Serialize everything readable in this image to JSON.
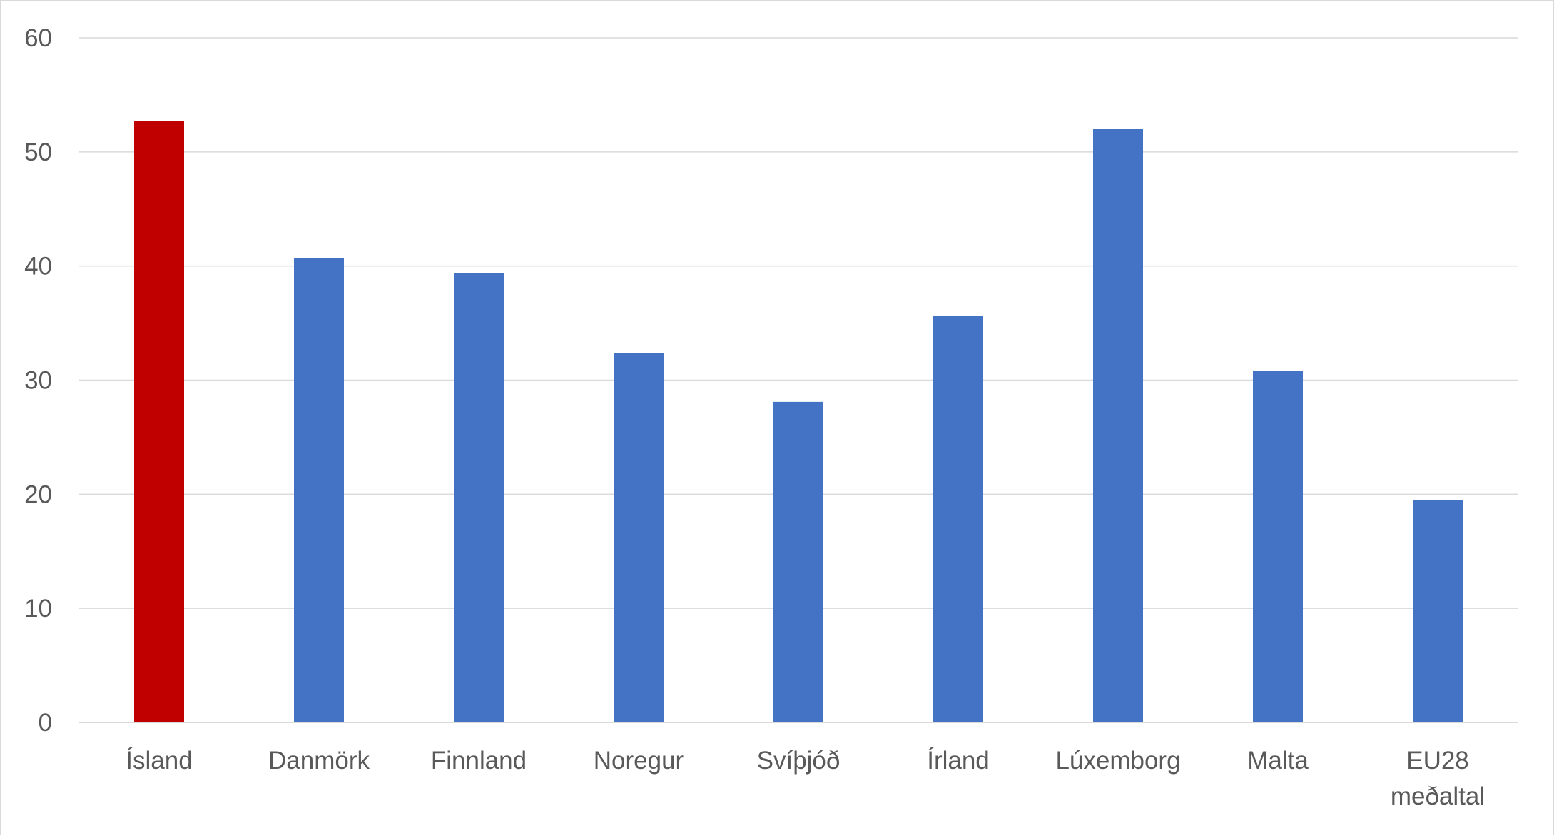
{
  "chart_data": {
    "type": "bar",
    "title": "",
    "xlabel": "",
    "ylabel": "",
    "categories": [
      [
        "Ísland"
      ],
      [
        "Danmörk"
      ],
      [
        "Finnland"
      ],
      [
        "Noregur"
      ],
      [
        "Svíþjóð"
      ],
      [
        "Írland"
      ],
      [
        "Lúxemborg"
      ],
      [
        "Malta"
      ],
      [
        "EU28",
        "meðaltal"
      ]
    ],
    "values": [
      52.7,
      40.7,
      39.4,
      32.4,
      28.1,
      35.6,
      52.0,
      30.8,
      19.5
    ],
    "ylim": [
      0,
      60
    ],
    "yticks": [
      "0",
      "10",
      "20",
      "30",
      "40",
      "50",
      "60"
    ],
    "grid": true,
    "legend": "none",
    "colors": {
      "highlight": "#C00000",
      "default": "#4472C4",
      "grid": "#D9D9D9",
      "text": "#595959"
    },
    "highlight_index": 0
  }
}
